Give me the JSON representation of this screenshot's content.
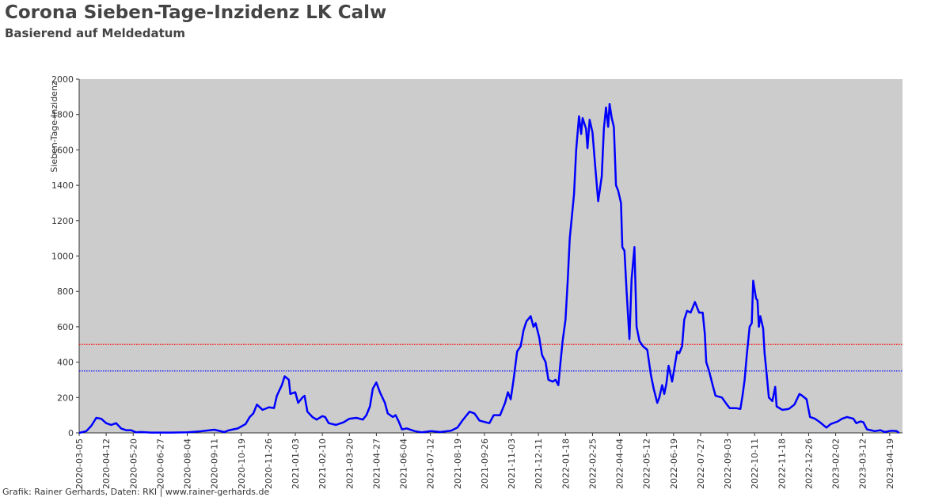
{
  "chart_data": {
    "type": "line",
    "title": "Corona Sieben-Tage-Inzidenz LK Calw",
    "subtitle": "Basierend auf Meldedatum",
    "y_label": "Sieben-Tage-Inzidenz",
    "footer": "Grafik: Rainer Gerhards, Daten: RKI | www.rainer-gerhards.de",
    "color": "#0000ff",
    "x": [
      "2020-03-05",
      "2020-03-15",
      "2020-03-22",
      "2020-03-29",
      "2020-04-05",
      "2020-04-12",
      "2020-04-19",
      "2020-04-26",
      "2020-05-03",
      "2020-05-10",
      "2020-05-17",
      "2020-05-24",
      "2020-05-31",
      "2020-06-14",
      "2020-07-12",
      "2020-08-04",
      "2020-08-25",
      "2020-09-11",
      "2020-09-25",
      "2020-10-02",
      "2020-10-14",
      "2020-10-25",
      "2020-10-31",
      "2020-11-05",
      "2020-11-10",
      "2020-11-18",
      "2020-11-27",
      "2020-12-04",
      "2020-12-08",
      "2020-12-15",
      "2020-12-19",
      "2020-12-25",
      "2020-12-27",
      "2021-01-03",
      "2021-01-07",
      "2021-01-13",
      "2021-01-16",
      "2021-01-20",
      "2021-01-27",
      "2021-02-02",
      "2021-02-10",
      "2021-02-14",
      "2021-02-19",
      "2021-03-01",
      "2021-03-12",
      "2021-03-20",
      "2021-03-30",
      "2021-04-08",
      "2021-04-13",
      "2021-04-18",
      "2021-04-22",
      "2021-04-27",
      "2021-05-02",
      "2021-05-09",
      "2021-05-13",
      "2021-05-20",
      "2021-05-24",
      "2021-05-29",
      "2021-06-02",
      "2021-06-09",
      "2021-06-20",
      "2021-06-30",
      "2021-07-13",
      "2021-07-26",
      "2021-08-10",
      "2021-08-19",
      "2021-08-26",
      "2021-08-30",
      "2021-09-05",
      "2021-09-12",
      "2021-09-19",
      "2021-09-28",
      "2021-10-03",
      "2021-10-09",
      "2021-10-18",
      "2021-10-25",
      "2021-10-29",
      "2021-11-02",
      "2021-11-06",
      "2021-11-11",
      "2021-11-16",
      "2021-11-20",
      "2021-11-24",
      "2021-11-30",
      "2021-12-04",
      "2021-12-07",
      "2021-12-12",
      "2021-12-16",
      "2021-12-21",
      "2021-12-25",
      "2021-12-31",
      "2022-01-04",
      "2022-01-08",
      "2022-01-11",
      "2022-01-14",
      "2022-01-18",
      "2022-01-21",
      "2022-01-24",
      "2022-01-30",
      "2022-02-02",
      "2022-02-06",
      "2022-02-09",
      "2022-02-11",
      "2022-02-16",
      "2022-02-18",
      "2022-02-21",
      "2022-02-25",
      "2022-03-01",
      "2022-03-05",
      "2022-03-10",
      "2022-03-13",
      "2022-03-16",
      "2022-03-19",
      "2022-03-21",
      "2022-03-24",
      "2022-03-27",
      "2022-03-30",
      "2022-04-02",
      "2022-04-06",
      "2022-04-08",
      "2022-04-11",
      "2022-04-14",
      "2022-04-18",
      "2022-04-21",
      "2022-04-25",
      "2022-04-28",
      "2022-05-02",
      "2022-05-07",
      "2022-05-13",
      "2022-05-18",
      "2022-05-22",
      "2022-05-27",
      "2022-05-30",
      "2022-06-03",
      "2022-06-06",
      "2022-06-09",
      "2022-06-12",
      "2022-06-17",
      "2022-06-24",
      "2022-06-27",
      "2022-07-01",
      "2022-07-04",
      "2022-07-08",
      "2022-07-13",
      "2022-07-19",
      "2022-07-25",
      "2022-07-30",
      "2022-08-02",
      "2022-08-04",
      "2022-08-08",
      "2022-08-13",
      "2022-08-17",
      "2022-08-26",
      "2022-09-02",
      "2022-09-06",
      "2022-09-15",
      "2022-09-21",
      "2022-09-24",
      "2022-09-27",
      "2022-09-30",
      "2022-10-04",
      "2022-10-07",
      "2022-10-09",
      "2022-10-13",
      "2022-10-15",
      "2022-10-17",
      "2022-10-19",
      "2022-10-23",
      "2022-10-25",
      "2022-10-27",
      "2022-10-31",
      "2022-11-05",
      "2022-11-09",
      "2022-11-11",
      "2022-11-19",
      "2022-11-28",
      "2022-12-06",
      "2022-12-13",
      "2022-12-17",
      "2022-12-23",
      "2022-12-28",
      "2023-01-04",
      "2023-01-11",
      "2023-01-20",
      "2023-01-26",
      "2023-02-05",
      "2023-02-11",
      "2023-02-18",
      "2023-02-27",
      "2023-03-03",
      "2023-03-09",
      "2023-03-13",
      "2023-03-18",
      "2023-03-29",
      "2023-04-06",
      "2023-04-12",
      "2023-04-21",
      "2023-04-29",
      "2023-05-02"
    ],
    "values": [
      0,
      10,
      40,
      85,
      80,
      55,
      45,
      55,
      25,
      15,
      15,
      3,
      5,
      2,
      2,
      3,
      10,
      18,
      5,
      15,
      25,
      50,
      90,
      110,
      160,
      130,
      145,
      140,
      210,
      270,
      320,
      300,
      220,
      230,
      170,
      200,
      210,
      120,
      90,
      75,
      95,
      90,
      55,
      45,
      60,
      80,
      85,
      75,
      100,
      150,
      250,
      285,
      230,
      170,
      110,
      90,
      100,
      60,
      20,
      25,
      10,
      3,
      10,
      5,
      12,
      30,
      70,
      90,
      120,
      110,
      70,
      60,
      55,
      100,
      100,
      170,
      230,
      190,
      300,
      460,
      490,
      580,
      630,
      660,
      600,
      620,
      540,
      440,
      400,
      300,
      290,
      300,
      270,
      400,
      520,
      640,
      850,
      1100,
      1350,
      1600,
      1790,
      1690,
      1780,
      1720,
      1610,
      1770,
      1700,
      1500,
      1310,
      1450,
      1720,
      1840,
      1730,
      1860,
      1780,
      1730,
      1400,
      1370,
      1300,
      1050,
      1030,
      800,
      530,
      870,
      1050,
      600,
      520,
      490,
      470,
      330,
      250,
      170,
      200,
      270,
      220,
      280,
      380,
      290,
      460,
      450,
      490,
      640,
      690,
      680,
      740,
      680,
      680,
      560,
      400,
      350,
      270,
      210,
      200,
      160,
      140,
      140,
      135,
      210,
      300,
      440,
      600,
      620,
      860,
      760,
      750,
      600,
      660,
      590,
      450,
      370,
      200,
      180,
      260,
      150,
      130,
      135,
      160,
      220,
      210,
      190,
      90,
      80,
      60,
      30,
      50,
      65,
      80,
      90,
      80,
      55,
      65,
      60,
      20,
      10,
      15,
      5,
      12,
      10,
      0
    ],
    "xlim": [
      "2020-03-05",
      "2023-05-07"
    ],
    "xticks": [
      "2020-03-05",
      "2020-04-12",
      "2020-05-20",
      "2020-06-27",
      "2020-08-04",
      "2020-09-11",
      "2020-10-19",
      "2020-11-26",
      "2021-01-03",
      "2021-02-10",
      "2021-03-20",
      "2021-04-27",
      "2021-06-04",
      "2021-07-12",
      "2021-08-19",
      "2021-09-26",
      "2021-11-03",
      "2021-12-11",
      "2022-01-18",
      "2022-02-25",
      "2022-04-04",
      "2022-05-12",
      "2022-06-19",
      "2022-07-27",
      "2022-09-03",
      "2022-10-11",
      "2022-11-18",
      "2022-12-26",
      "2023-02-02",
      "2023-03-12",
      "2023-04-19"
    ],
    "ylim": [
      0,
      2000
    ],
    "yticks": [
      0,
      200,
      400,
      600,
      800,
      1000,
      1200,
      1400,
      1600,
      1800,
      2000
    ],
    "reference_lines": [
      {
        "value": 500,
        "color": "#ff0000"
      },
      {
        "value": 350,
        "color": "#0000ff"
      }
    ]
  }
}
